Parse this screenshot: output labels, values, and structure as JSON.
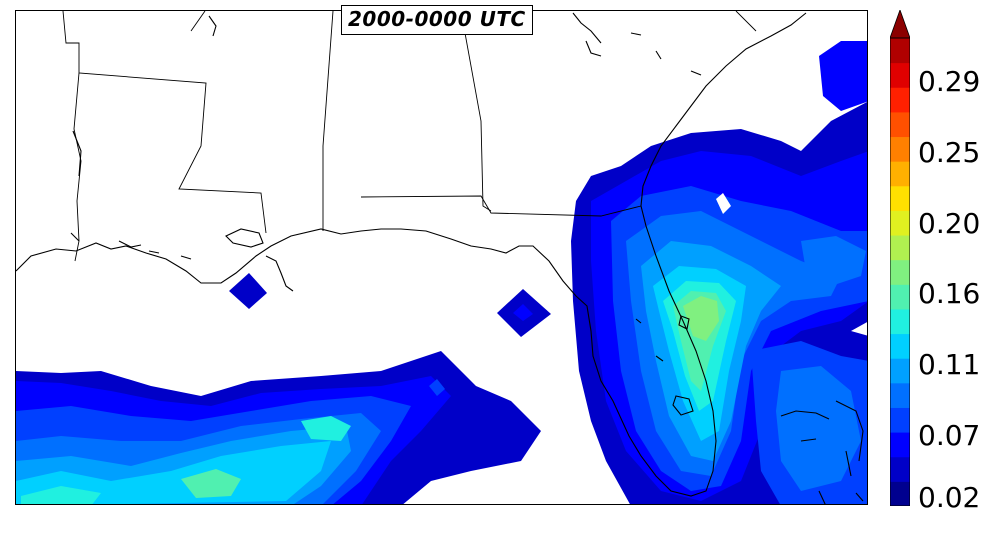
{
  "map": {
    "title": "2000-0000 UTC",
    "region": "Gulf of Mexico and Florida",
    "colormap": "jet",
    "background_color": "#ffffff",
    "coastline_color": "#000000"
  },
  "colorbar": {
    "ticks": [
      "0.02",
      "0.07",
      "0.11",
      "0.16",
      "0.20",
      "0.25",
      "0.29"
    ],
    "extend": "max",
    "colors": [
      "#00008f",
      "#0000c8",
      "#0000ff",
      "#0040ff",
      "#0070ff",
      "#00a0ff",
      "#00d0ff",
      "#20f0e0",
      "#50f0b0",
      "#80f080",
      "#b0f050",
      "#e0f020",
      "#ffe000",
      "#ffb000",
      "#ff8000",
      "#ff5000",
      "#ff2000",
      "#e00000",
      "#b00000"
    ],
    "extend_color": "#8b0000"
  }
}
